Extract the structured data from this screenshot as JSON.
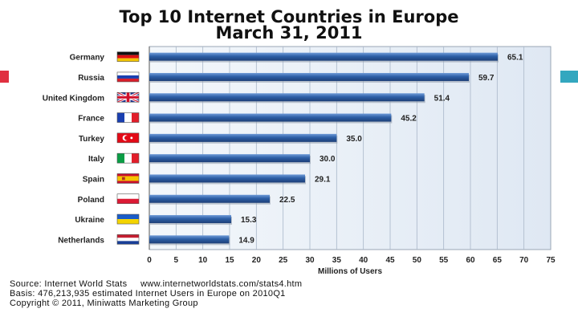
{
  "chart_data": {
    "type": "bar",
    "orientation": "horizontal",
    "title": "Top 10 Internet Countries in Europe",
    "subtitle": "March 31, 2011",
    "categories": [
      "Germany",
      "Russia",
      "United Kingdom",
      "France",
      "Turkey",
      "Italy",
      "Spain",
      "Poland",
      "Ukraine",
      "Netherlands"
    ],
    "values": [
      65.1,
      59.7,
      51.4,
      45.2,
      35.0,
      30.0,
      29.1,
      22.5,
      15.3,
      14.9
    ],
    "value_labels": [
      "65.1",
      "59.7",
      "51.4",
      "45.2",
      "35.0",
      "30.0",
      "29.1",
      "22.5",
      "15.3",
      "14.9"
    ],
    "xlabel": "Millions of Users",
    "ylabel": "",
    "xlim": [
      0,
      75
    ],
    "xticks": [
      0,
      5,
      10,
      15,
      20,
      25,
      30,
      35,
      40,
      45,
      50,
      55,
      60,
      65,
      70,
      75
    ],
    "grid": true,
    "bar_color": "#2d5fa6",
    "plot_background": "#dfe8f3"
  },
  "footer": {
    "source": "Source: Internet World Stats     www.internetworldstats.com/stats4.htm",
    "basis": "Basis: 476,213,935 estimated Internet Users in Europe on 2010Q1",
    "copyright": "Copyright © 2011, Miniwatts Marketing Group"
  },
  "flags": [
    "germany-flag-icon",
    "russia-flag-icon",
    "uk-flag-icon",
    "france-flag-icon",
    "turkey-flag-icon",
    "italy-flag-icon",
    "spain-flag-icon",
    "poland-flag-icon",
    "ukraine-flag-icon",
    "netherlands-flag-icon"
  ],
  "colors": {
    "left_marker": "#e03040",
    "right_marker": "#33a7bf"
  }
}
